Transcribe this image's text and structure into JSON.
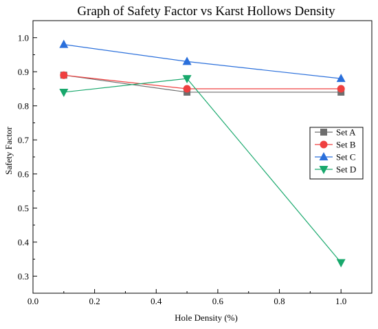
{
  "chart_data": {
    "type": "line",
    "title": "Graph of Safety Factor vs Karst Hollows Density",
    "xlabel": "Hole Density (%)",
    "ylabel": "Safety Factor",
    "xlim": [
      0.0,
      1.1
    ],
    "ylim": [
      0.25,
      1.05
    ],
    "x_ticks": [
      "0.0",
      "0.2",
      "0.4",
      "0.6",
      "0.8",
      "1.0"
    ],
    "y_ticks": [
      "0.3",
      "0.4",
      "0.5",
      "0.6",
      "0.7",
      "0.8",
      "0.9",
      "1.0"
    ],
    "x": [
      0.1,
      0.5,
      1.0
    ],
    "grid": false,
    "legend_position": "right",
    "series": [
      {
        "name": "Set A",
        "values": [
          0.89,
          0.84,
          0.84
        ],
        "color": "#6e6e6e",
        "marker": "square"
      },
      {
        "name": "Set B",
        "values": [
          0.89,
          0.85,
          0.85
        ],
        "color": "#ef4040",
        "marker": "circle"
      },
      {
        "name": "Set C",
        "values": [
          0.98,
          0.93,
          0.88
        ],
        "color": "#2a6fdb",
        "marker": "triangle-up"
      },
      {
        "name": "Set D",
        "values": [
          0.84,
          0.88,
          0.34
        ],
        "color": "#18a86c",
        "marker": "triangle-down"
      }
    ]
  }
}
